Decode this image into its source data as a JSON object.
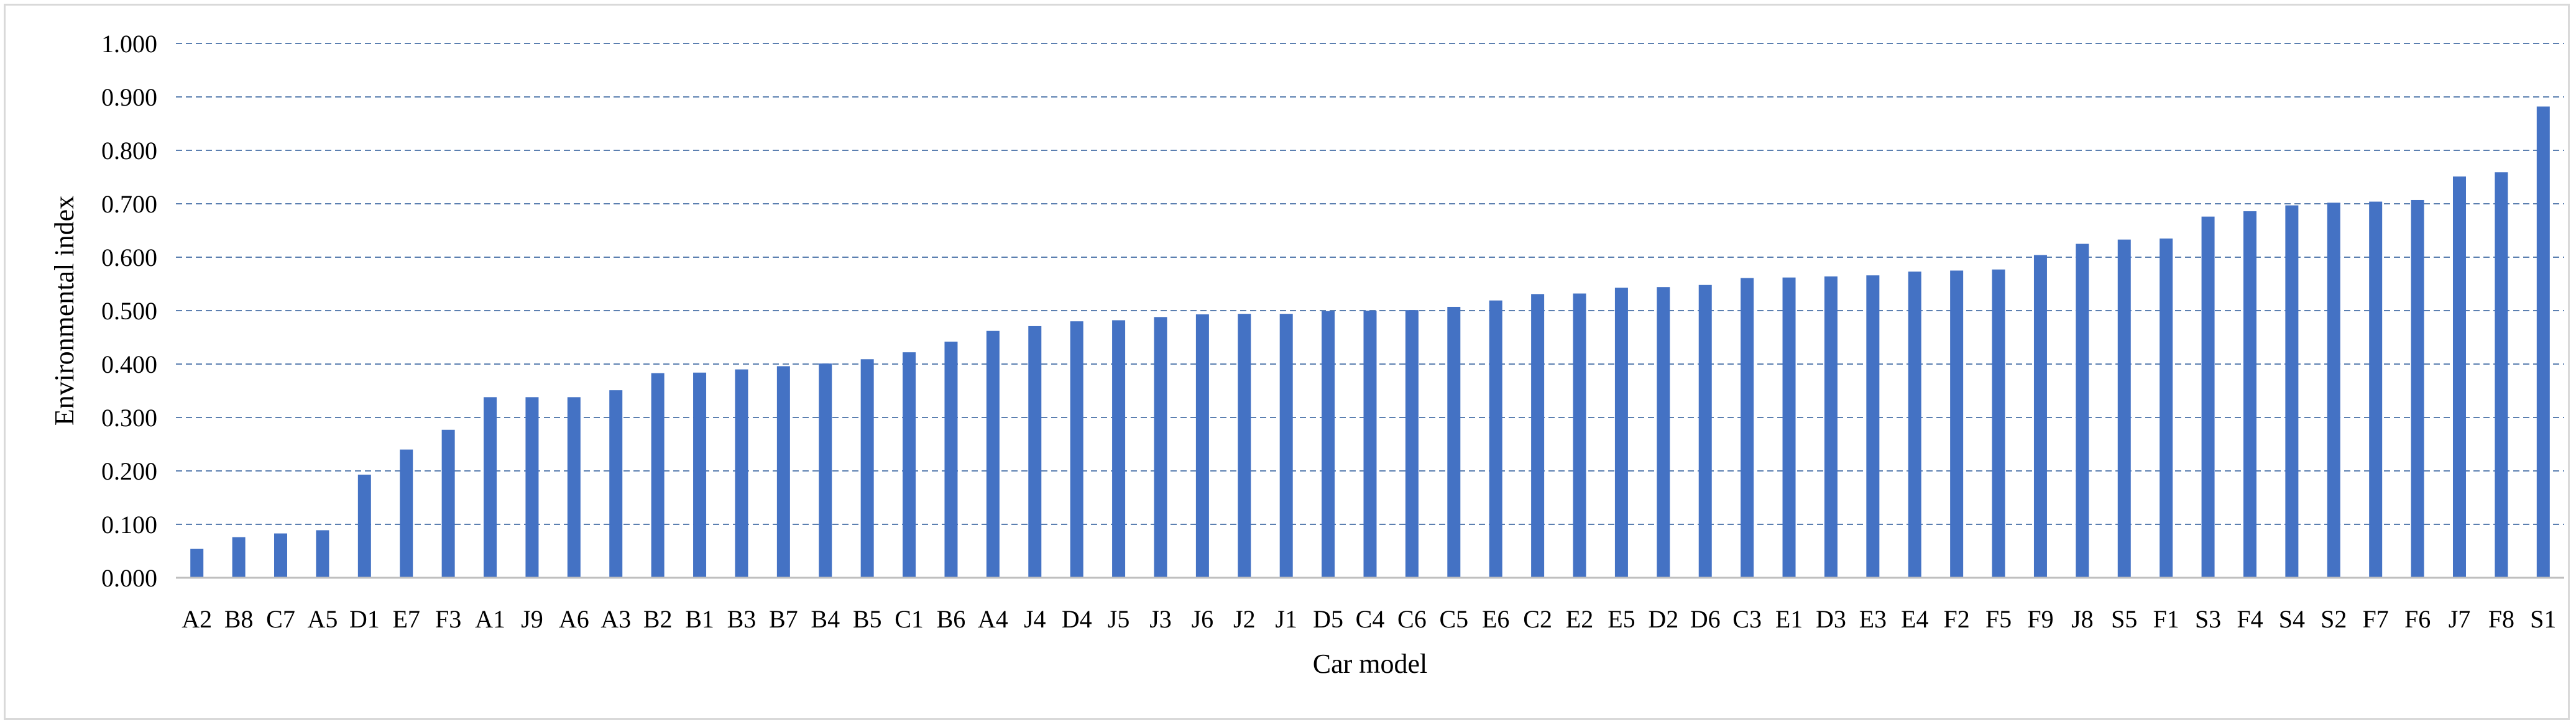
{
  "chart_data": {
    "type": "bar",
    "title": "",
    "xlabel": "Car model",
    "ylabel": "Environmental index",
    "ylim": [
      0,
      1.0
    ],
    "yticks": [
      "0.000",
      "0.100",
      "0.200",
      "0.300",
      "0.400",
      "0.500",
      "0.600",
      "0.700",
      "0.800",
      "0.900",
      "1.000"
    ],
    "grid": true,
    "legend": "none",
    "bar_color": "#4472c4",
    "grid_color": "#5b7fb0",
    "categories": [
      "A2",
      "B8",
      "C7",
      "A5",
      "D1",
      "E7",
      "F3",
      "A1",
      "J9",
      "A6",
      "A3",
      "B2",
      "B1",
      "B3",
      "B7",
      "B4",
      "B5",
      "C1",
      "B6",
      "A4",
      "J4",
      "D4",
      "J5",
      "J3",
      "J6",
      "J2",
      "J1",
      "D5",
      "C4",
      "C6",
      "C5",
      "E6",
      "C2",
      "E2",
      "E5",
      "D2",
      "D6",
      "C3",
      "E1",
      "D3",
      "E3",
      "E4",
      "F2",
      "F5",
      "F9",
      "J8",
      "S5",
      "F1",
      "S3",
      "F4",
      "S4",
      "S2",
      "F7",
      "F6",
      "J7",
      "F8",
      "S1"
    ],
    "values": [
      0.054,
      0.076,
      0.083,
      0.089,
      0.193,
      0.24,
      0.277,
      0.338,
      0.338,
      0.338,
      0.351,
      0.383,
      0.384,
      0.39,
      0.396,
      0.401,
      0.409,
      0.422,
      0.442,
      0.462,
      0.471,
      0.48,
      0.482,
      0.488,
      0.493,
      0.494,
      0.494,
      0.499,
      0.5,
      0.501,
      0.507,
      0.519,
      0.531,
      0.532,
      0.543,
      0.544,
      0.548,
      0.561,
      0.562,
      0.564,
      0.566,
      0.573,
      0.575,
      0.577,
      0.604,
      0.625,
      0.633,
      0.635,
      0.676,
      0.686,
      0.697,
      0.702,
      0.704,
      0.707,
      0.751,
      0.759,
      0.882
    ]
  }
}
